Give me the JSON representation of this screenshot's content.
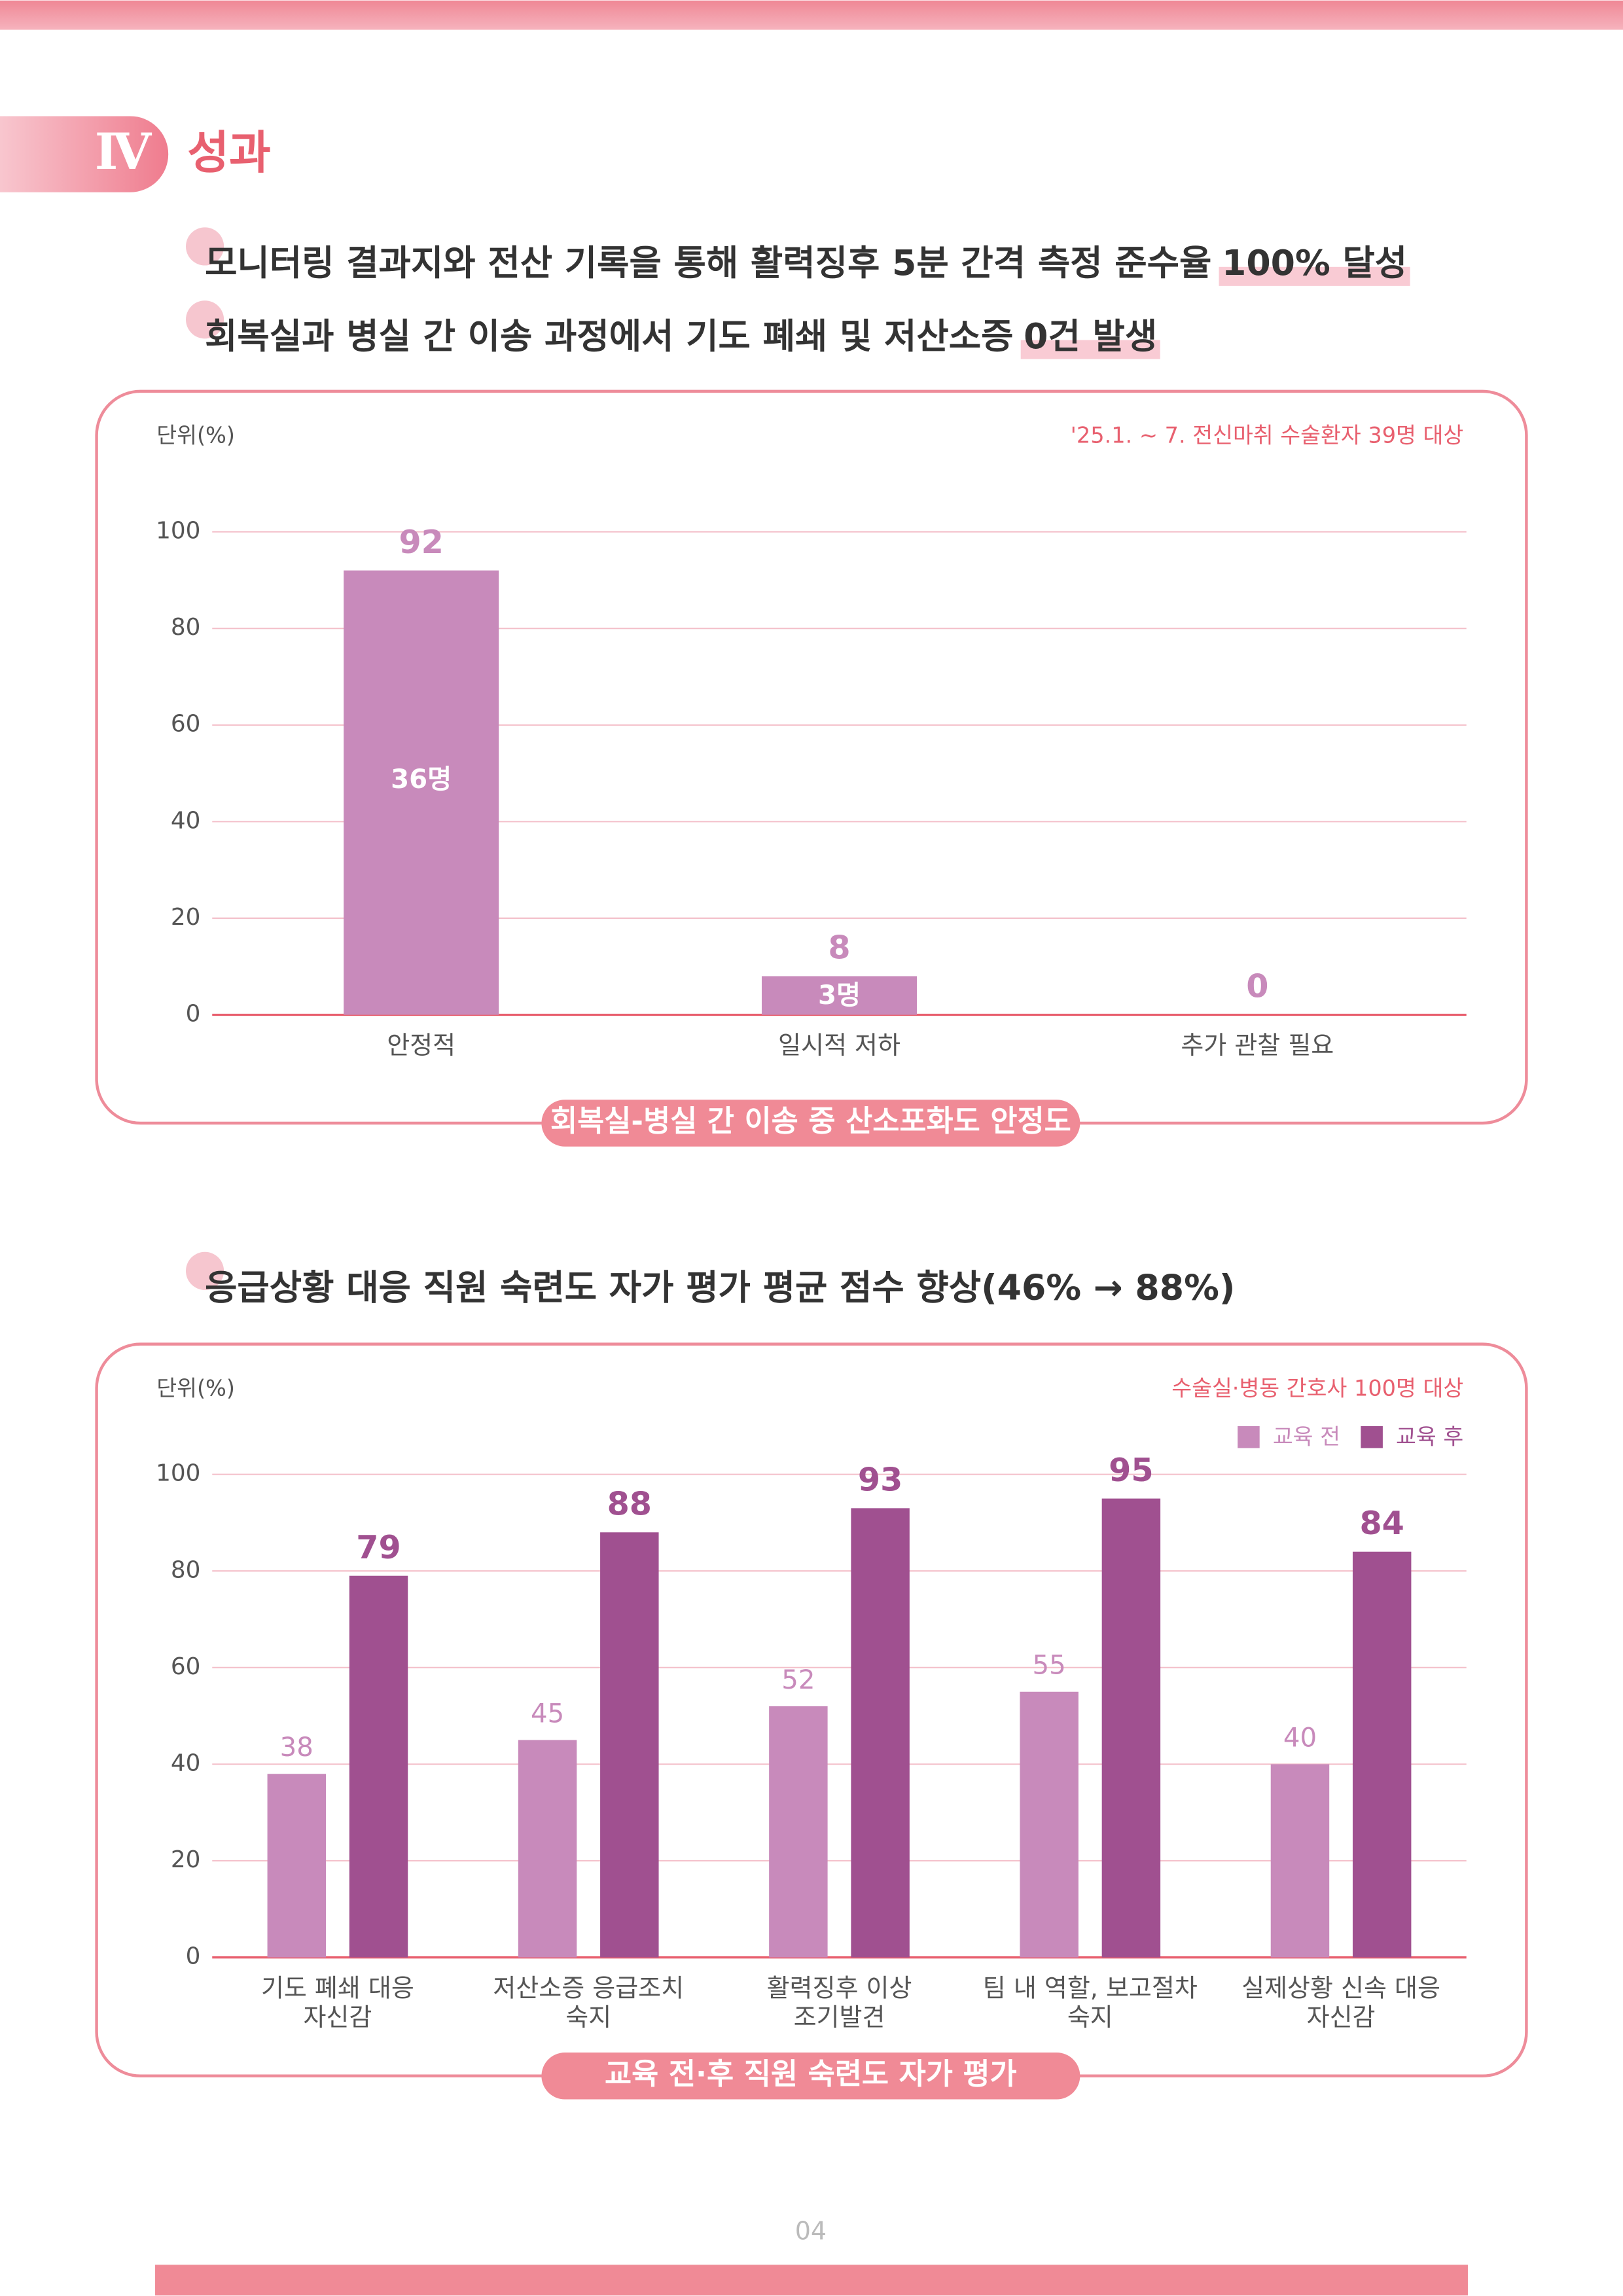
{
  "header": {
    "number": "Ⅳ",
    "title": "성과"
  },
  "bullets": [
    {
      "text": "모니터링 결과지와 전산 기록을 통해 활력징후 5분 간격 측정 준수율",
      "highlight": "100% 달성"
    },
    {
      "text": "회복실과 병실 간 이송 과정에서 기도 폐쇄 및 저산소증",
      "highlight": "0건 발생"
    },
    {
      "text": "응급상황 대응 직원 숙련도 자가 평가 평균 점수 향상(46% → 88%)"
    }
  ],
  "chart_data": [
    {
      "type": "bar",
      "title": "회복실-병실 간 이송 중 산소포화도 안정도",
      "y_label": "단위(%)",
      "note": "'25.1. ~ 7. 전신마취 수술환자 39명 대상",
      "categories": [
        "안정적",
        "일시적 저하",
        "추가 관찰 필요"
      ],
      "values": [
        92,
        8,
        0
      ],
      "count_labels": [
        "36명",
        "3명",
        null
      ],
      "color": "#c88abb",
      "ylim": [
        0,
        100
      ],
      "yticks": [
        0,
        20,
        40,
        60,
        80,
        100
      ],
      "grid": true
    },
    {
      "type": "bar",
      "title": "교육 전·후 직원 숙련도 자가 평가",
      "y_label": "단위(%)",
      "note": "수술실·병동 간호사 100명 대상",
      "categories": [
        [
          "기도 폐쇄 대응",
          "자신감"
        ],
        [
          "저산소증 응급조치",
          "숙지"
        ],
        [
          "활력징후 이상",
          "조기발견"
        ],
        [
          "팀 내 역할, 보고절차",
          "숙지"
        ],
        [
          "실제상황 신속 대응",
          "자신감"
        ]
      ],
      "series": [
        {
          "name": "교육 전",
          "color": "#c88abb",
          "values": [
            38,
            45,
            52,
            55,
            40
          ]
        },
        {
          "name": "교육 후",
          "color": "#a05090",
          "values": [
            79,
            88,
            93,
            95,
            84
          ]
        }
      ],
      "ylim": [
        0,
        100
      ],
      "yticks": [
        0,
        20,
        40,
        60,
        80,
        100
      ],
      "grid": true,
      "legend": "top-right"
    }
  ],
  "page_number": "04"
}
